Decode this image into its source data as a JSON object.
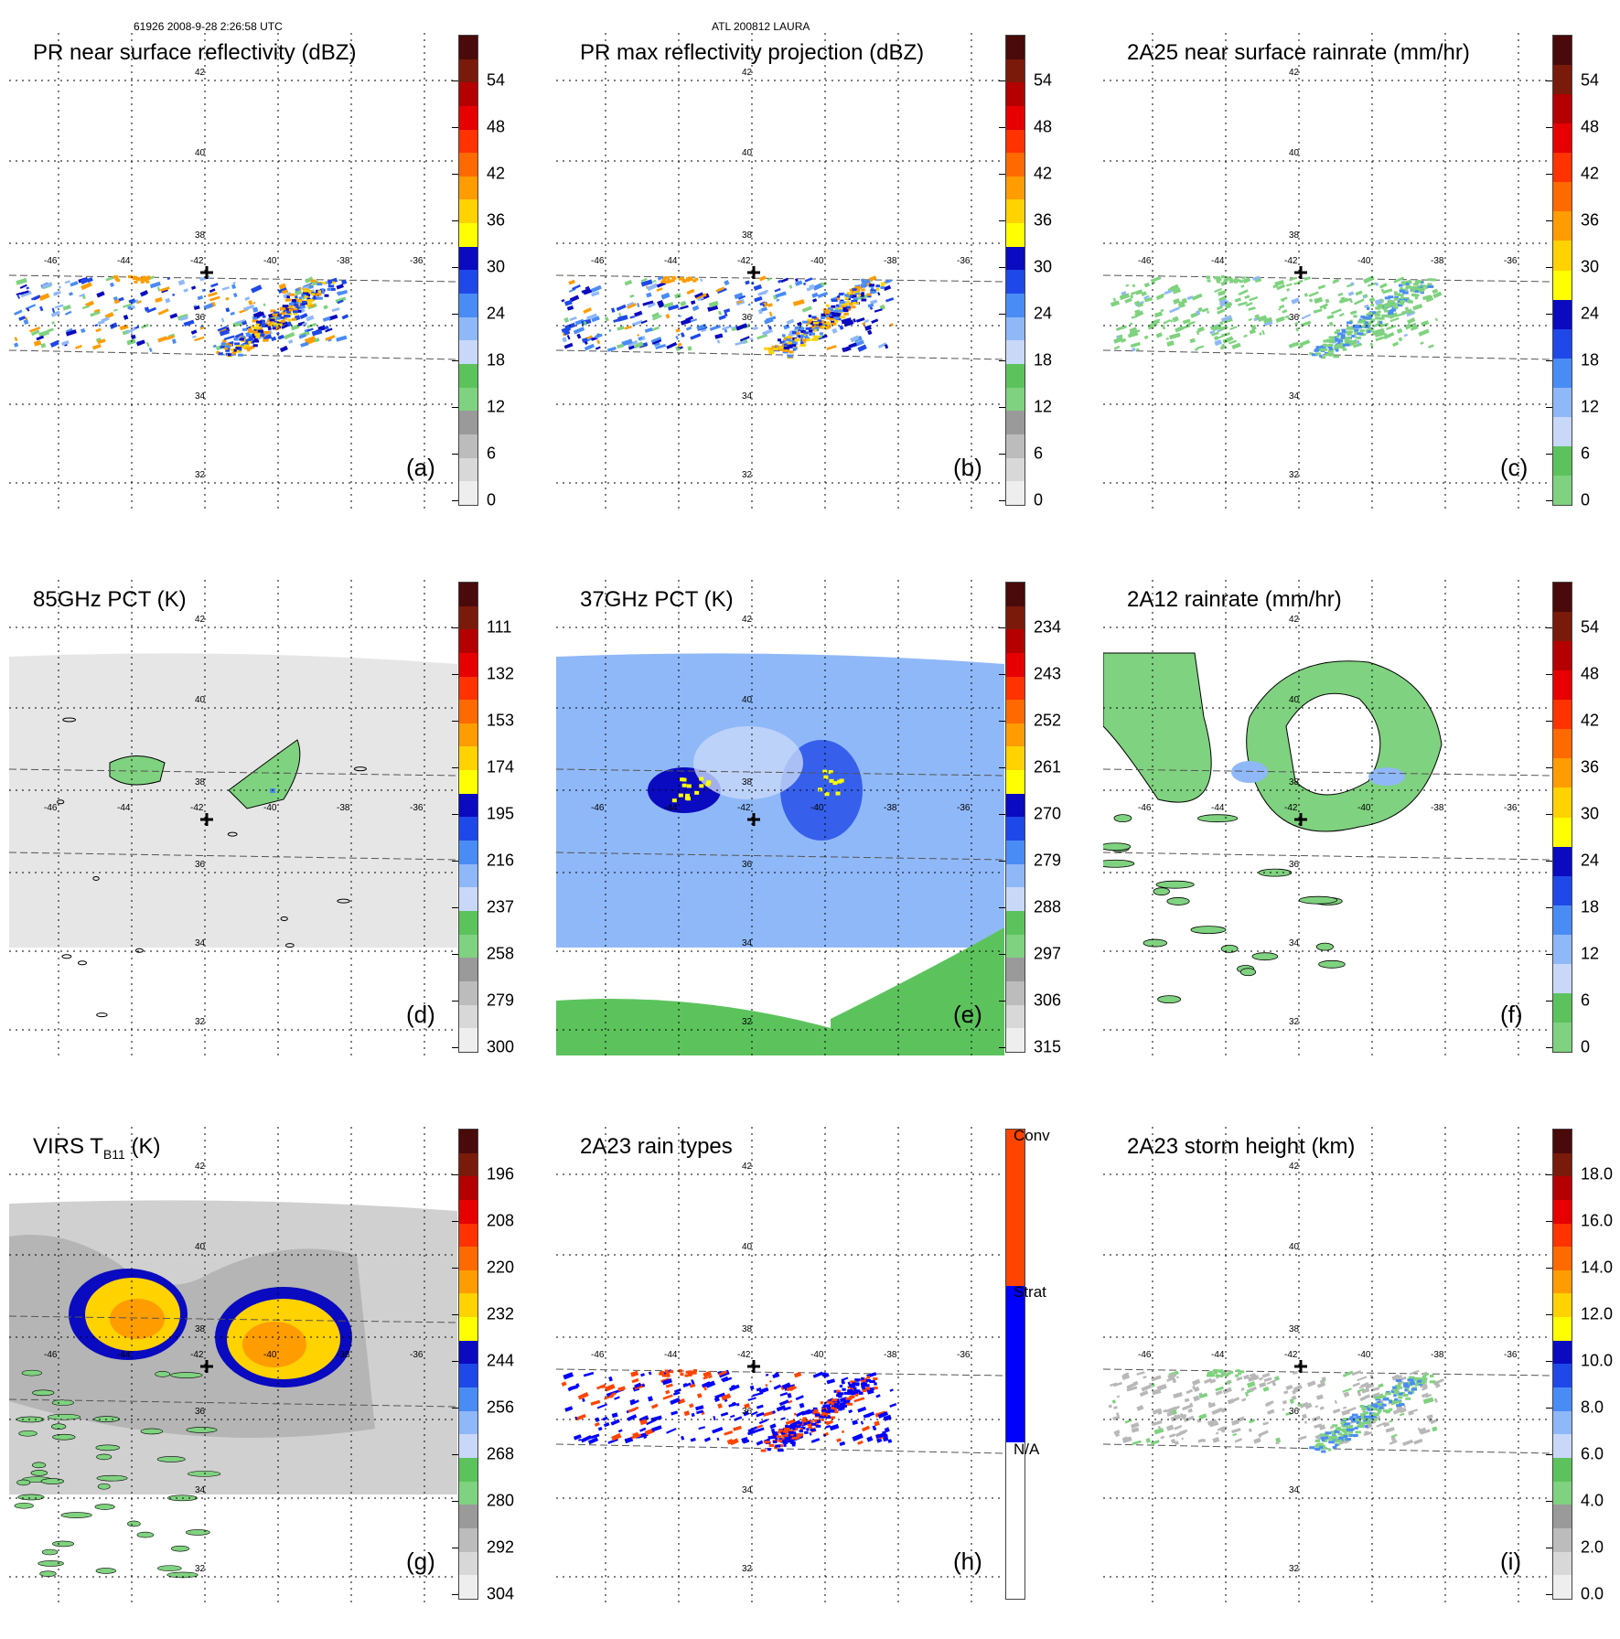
{
  "header": {
    "left": "61926 2008-9-28 2:26:58 UTC",
    "center": "ATL 200812 LAURA"
  },
  "axes": {
    "lon_labels": [
      "-46",
      "-44",
      "-42",
      "-40",
      "-38",
      "-36"
    ],
    "lat_labels": [
      "42",
      "40",
      "38",
      "36",
      "34",
      "32"
    ]
  },
  "colors": {
    "reflectivity": [
      "#ffffff",
      "#eeeeee",
      "#d8d8d8",
      "#bcbcbc",
      "#9a9a9a",
      "#7fd27f",
      "#5cc35c",
      "#c8d8f8",
      "#8fb8f8",
      "#4a8cf5",
      "#1f48e8",
      "#0a0ac0",
      "#ffff00",
      "#ffd200",
      "#ff9c00",
      "#ff6a00",
      "#ff3200",
      "#e60000",
      "#b40000",
      "#7a1a0a",
      "#4a0a0a"
    ],
    "rain_types": {
      "na": "#ffffff",
      "strat": "#0000ff",
      "conv": "#ff4400"
    }
  },
  "panels": [
    {
      "id": "a",
      "title": "PR near surface reflectivity (dBZ)",
      "label": "(a)",
      "ticks": [
        "54",
        "48",
        "42",
        "36",
        "30",
        "24",
        "18",
        "12",
        "6",
        "0"
      ]
    },
    {
      "id": "b",
      "title": "PR max reflectivity projection (dBZ)",
      "label": "(b)",
      "ticks": [
        "54",
        "48",
        "42",
        "36",
        "30",
        "24",
        "18",
        "12",
        "6",
        "0"
      ]
    },
    {
      "id": "c",
      "title": "2A25 near surface rainrate (mm/hr)",
      "label": "(c)",
      "ticks": [
        "54",
        "48",
        "42",
        "36",
        "30",
        "24",
        "18",
        "12",
        "6",
        "0"
      ]
    },
    {
      "id": "d",
      "title": "85GHz PCT (K)",
      "label": "(d)",
      "ticks": [
        "111",
        "132",
        "153",
        "174",
        "195",
        "216",
        "237",
        "258",
        "279",
        "300"
      ]
    },
    {
      "id": "e",
      "title": "37GHz PCT (K)",
      "label": "(e)",
      "ticks": [
        "234",
        "243",
        "252",
        "261",
        "270",
        "279",
        "288",
        "297",
        "306",
        "315"
      ]
    },
    {
      "id": "f",
      "title": "2A12 rainrate (mm/hr)",
      "label": "(f)",
      "ticks": [
        "54",
        "48",
        "42",
        "36",
        "30",
        "24",
        "18",
        "12",
        "6",
        "0"
      ]
    },
    {
      "id": "g",
      "title_main": "VIRS T",
      "title_sub": "B11",
      "title_end": " (K)",
      "label": "(g)",
      "ticks": [
        "196",
        "208",
        "220",
        "232",
        "244",
        "256",
        "268",
        "280",
        "292",
        "304"
      ]
    },
    {
      "id": "h",
      "title": "2A23 rain types",
      "label": "(h)",
      "ticks": [
        "Conv",
        "Strat",
        "N/A"
      ]
    },
    {
      "id": "i",
      "title": "2A23 storm height (km)",
      "label": "(i)",
      "ticks": [
        "18.0",
        "16.0",
        "14.0",
        "12.0",
        "10.0",
        "8.0",
        "6.0",
        "4.0",
        "2.0",
        "0.0"
      ]
    }
  ]
}
